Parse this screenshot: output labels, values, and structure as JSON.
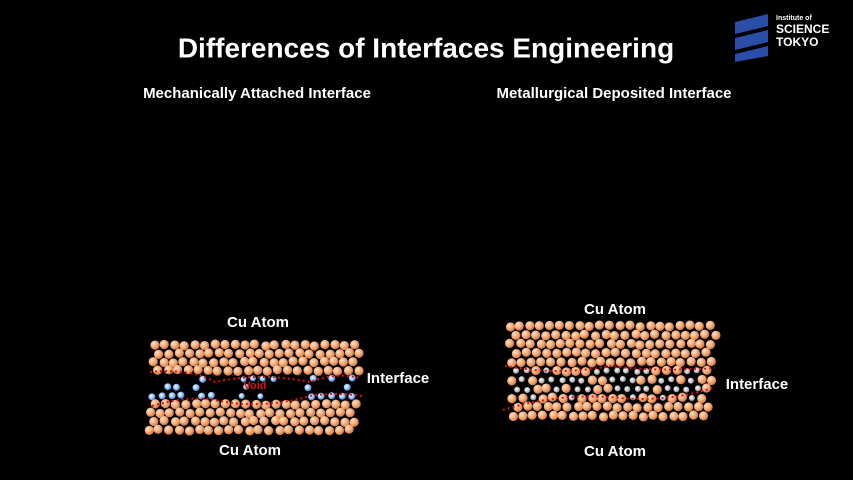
{
  "header": {
    "title": "Differences of Interfaces Engineering",
    "logo": {
      "line1": "Institute of",
      "line2": "SCIENCE",
      "line3": "TOKYO"
    }
  },
  "panels": [
    {
      "heading": "Mechanically Attached Interface",
      "top_label": "Cu Atom",
      "bottom_label": "Cu Atom",
      "interface_label": "Interface",
      "void_label": "Void"
    },
    {
      "heading": "Metallurgical Deposited Interface",
      "top_label": "Cu Atom",
      "bottom_label": "Cu Atom",
      "interface_label": "Interface"
    }
  ]
}
